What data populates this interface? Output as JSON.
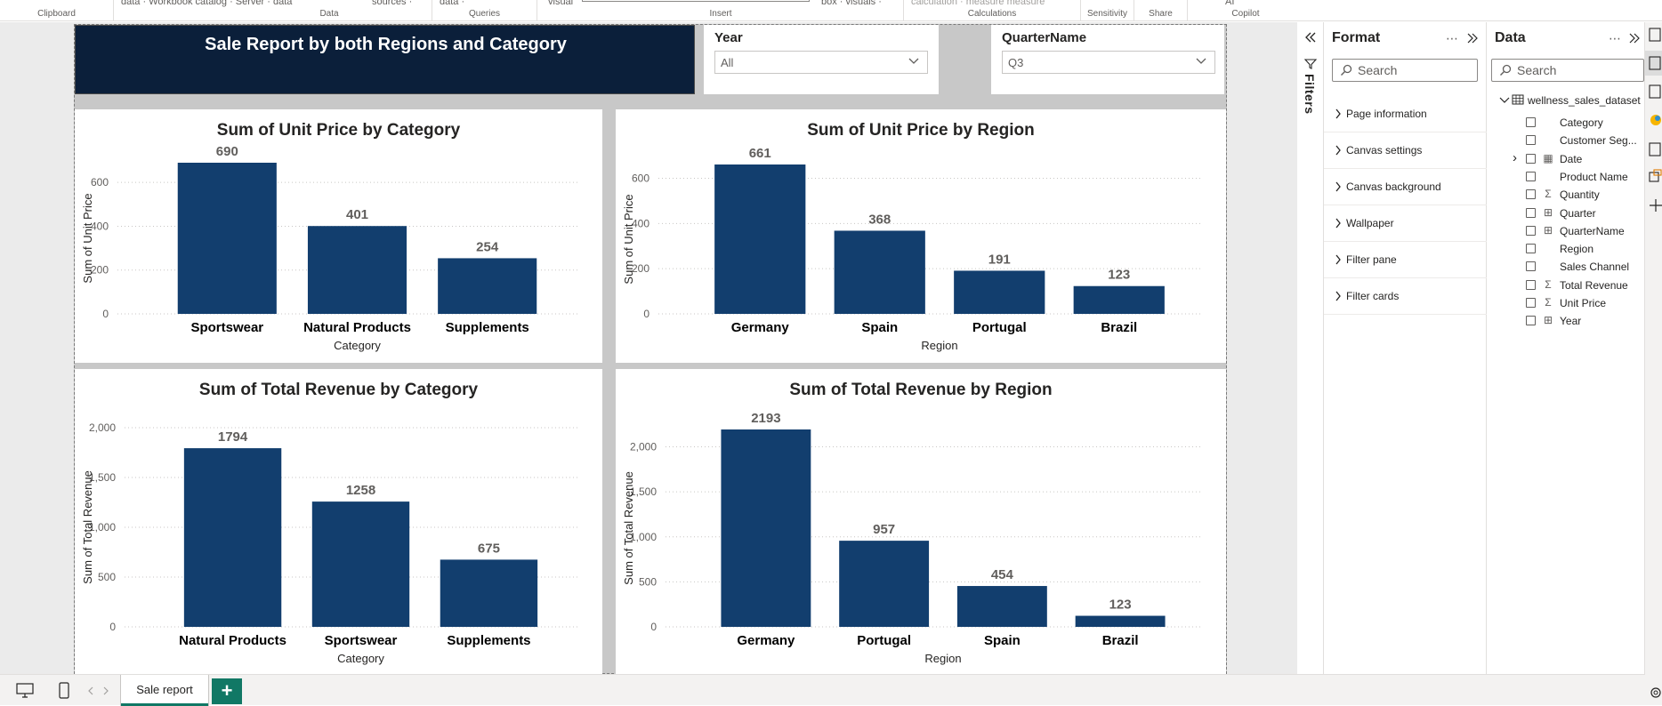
{
  "ribbon": {
    "groups": [
      {
        "label": "Clipboard",
        "cut_text": ""
      },
      {
        "label": "Data",
        "cut_text": "data · Workbook catalog · Server · data"
      },
      {
        "label": "",
        "cut_text": "sources ·"
      },
      {
        "label": "Queries",
        "cut_text": "data ·"
      },
      {
        "label": "Insert",
        "cut_text": "visual"
      },
      {
        "label": "",
        "cut_text": "box · visuals ·"
      },
      {
        "label": "Calculations",
        "cut_text": "calculation · measure measure"
      },
      {
        "label": "Sensitivity",
        "cut_text": ""
      },
      {
        "label": "Share",
        "cut_text": ""
      },
      {
        "label": "Copilot",
        "cut_text": "AI"
      }
    ]
  },
  "report": {
    "title": "Sale Report by both Regions  and Category",
    "slicers": [
      {
        "title": "Year",
        "value": "All"
      },
      {
        "title": "QuarterName",
        "value": "Q3"
      }
    ]
  },
  "chart_data": [
    {
      "type": "bar",
      "title": "Sum of Unit Price by Category",
      "xlabel": "Category",
      "ylabel": "Sum of Unit Price",
      "categories": [
        "Sportswear",
        "Natural Products",
        "Supplements"
      ],
      "values": [
        690,
        401,
        254
      ],
      "ylim": [
        0,
        690
      ],
      "yticks": [
        0,
        200,
        400,
        600
      ],
      "ytick_labels": [
        "0",
        "200",
        "400",
        "600"
      ],
      "bar_color": "#123e6e",
      "grid": true
    },
    {
      "type": "bar",
      "title": "Sum of Unit Price by Region",
      "xlabel": "Region",
      "ylabel": "Sum of Unit Price",
      "categories": [
        "Germany",
        "Spain",
        "Portugal",
        "Brazil"
      ],
      "values": [
        661,
        368,
        191,
        123
      ],
      "ylim": [
        0,
        661
      ],
      "yticks": [
        0,
        200,
        400,
        600
      ],
      "ytick_labels": [
        "0",
        "200",
        "400",
        "600"
      ],
      "bar_color": "#123e6e",
      "grid": true
    },
    {
      "type": "bar",
      "title": "Sum of Total Revenue by Category",
      "xlabel": "Category",
      "ylabel": "Sum of Total Revenue",
      "categories": [
        "Natural Products",
        "Sportswear",
        "Supplements"
      ],
      "values": [
        1794,
        1258,
        675
      ],
      "ylim": [
        0,
        2000
      ],
      "yticks": [
        0,
        500,
        1000,
        1500,
        2000
      ],
      "ytick_labels": [
        "0",
        "500",
        "1,000",
        "1,500",
        "2,000"
      ],
      "bar_color": "#123e6e",
      "grid": true
    },
    {
      "type": "bar",
      "title": "Sum of Total Revenue by Region",
      "xlabel": "Region",
      "ylabel": "Sum of Total Revenue",
      "categories": [
        "Germany",
        "Portugal",
        "Spain",
        "Brazil"
      ],
      "values": [
        2193,
        957,
        454,
        123
      ],
      "ylim": [
        0,
        2193
      ],
      "yticks": [
        0,
        500,
        1000,
        1500,
        2000
      ],
      "ytick_labels": [
        "0",
        "500",
        "1,000",
        "1,500",
        "2,000"
      ],
      "bar_color": "#123e6e",
      "grid": true
    }
  ],
  "filters_pane": {
    "label": "Filters"
  },
  "format_pane": {
    "title": "Format",
    "search_placeholder": "Search",
    "sections": [
      "Page information",
      "Canvas settings",
      "Canvas background",
      "Wallpaper",
      "Filter pane",
      "Filter cards"
    ]
  },
  "data_pane": {
    "title": "Data",
    "search_placeholder": "Search",
    "table_name": "wellness_sales_dataset",
    "fields": [
      {
        "name": "Category",
        "icon": ""
      },
      {
        "name": "Customer Seg...",
        "icon": ""
      },
      {
        "name": "Date",
        "icon": "calendar-icon"
      },
      {
        "name": "Product Name",
        "icon": ""
      },
      {
        "name": "Quantity",
        "icon": "sigma-icon"
      },
      {
        "name": "Quarter",
        "icon": "hierarchy-icon"
      },
      {
        "name": "QuarterName",
        "icon": "hierarchy-icon"
      },
      {
        "name": "Region",
        "icon": ""
      },
      {
        "name": "Sales Channel",
        "icon": ""
      },
      {
        "name": "Total Revenue",
        "icon": "sigma-icon"
      },
      {
        "name": "Unit Price",
        "icon": "sigma-icon"
      },
      {
        "name": "Year",
        "icon": "hierarchy-icon"
      }
    ]
  },
  "tabs": {
    "active": "Sale report",
    "add_label": "+"
  },
  "colors": {
    "accent": "#117865",
    "title_bg": "#0b1f3a",
    "bar": "#123e6e"
  }
}
